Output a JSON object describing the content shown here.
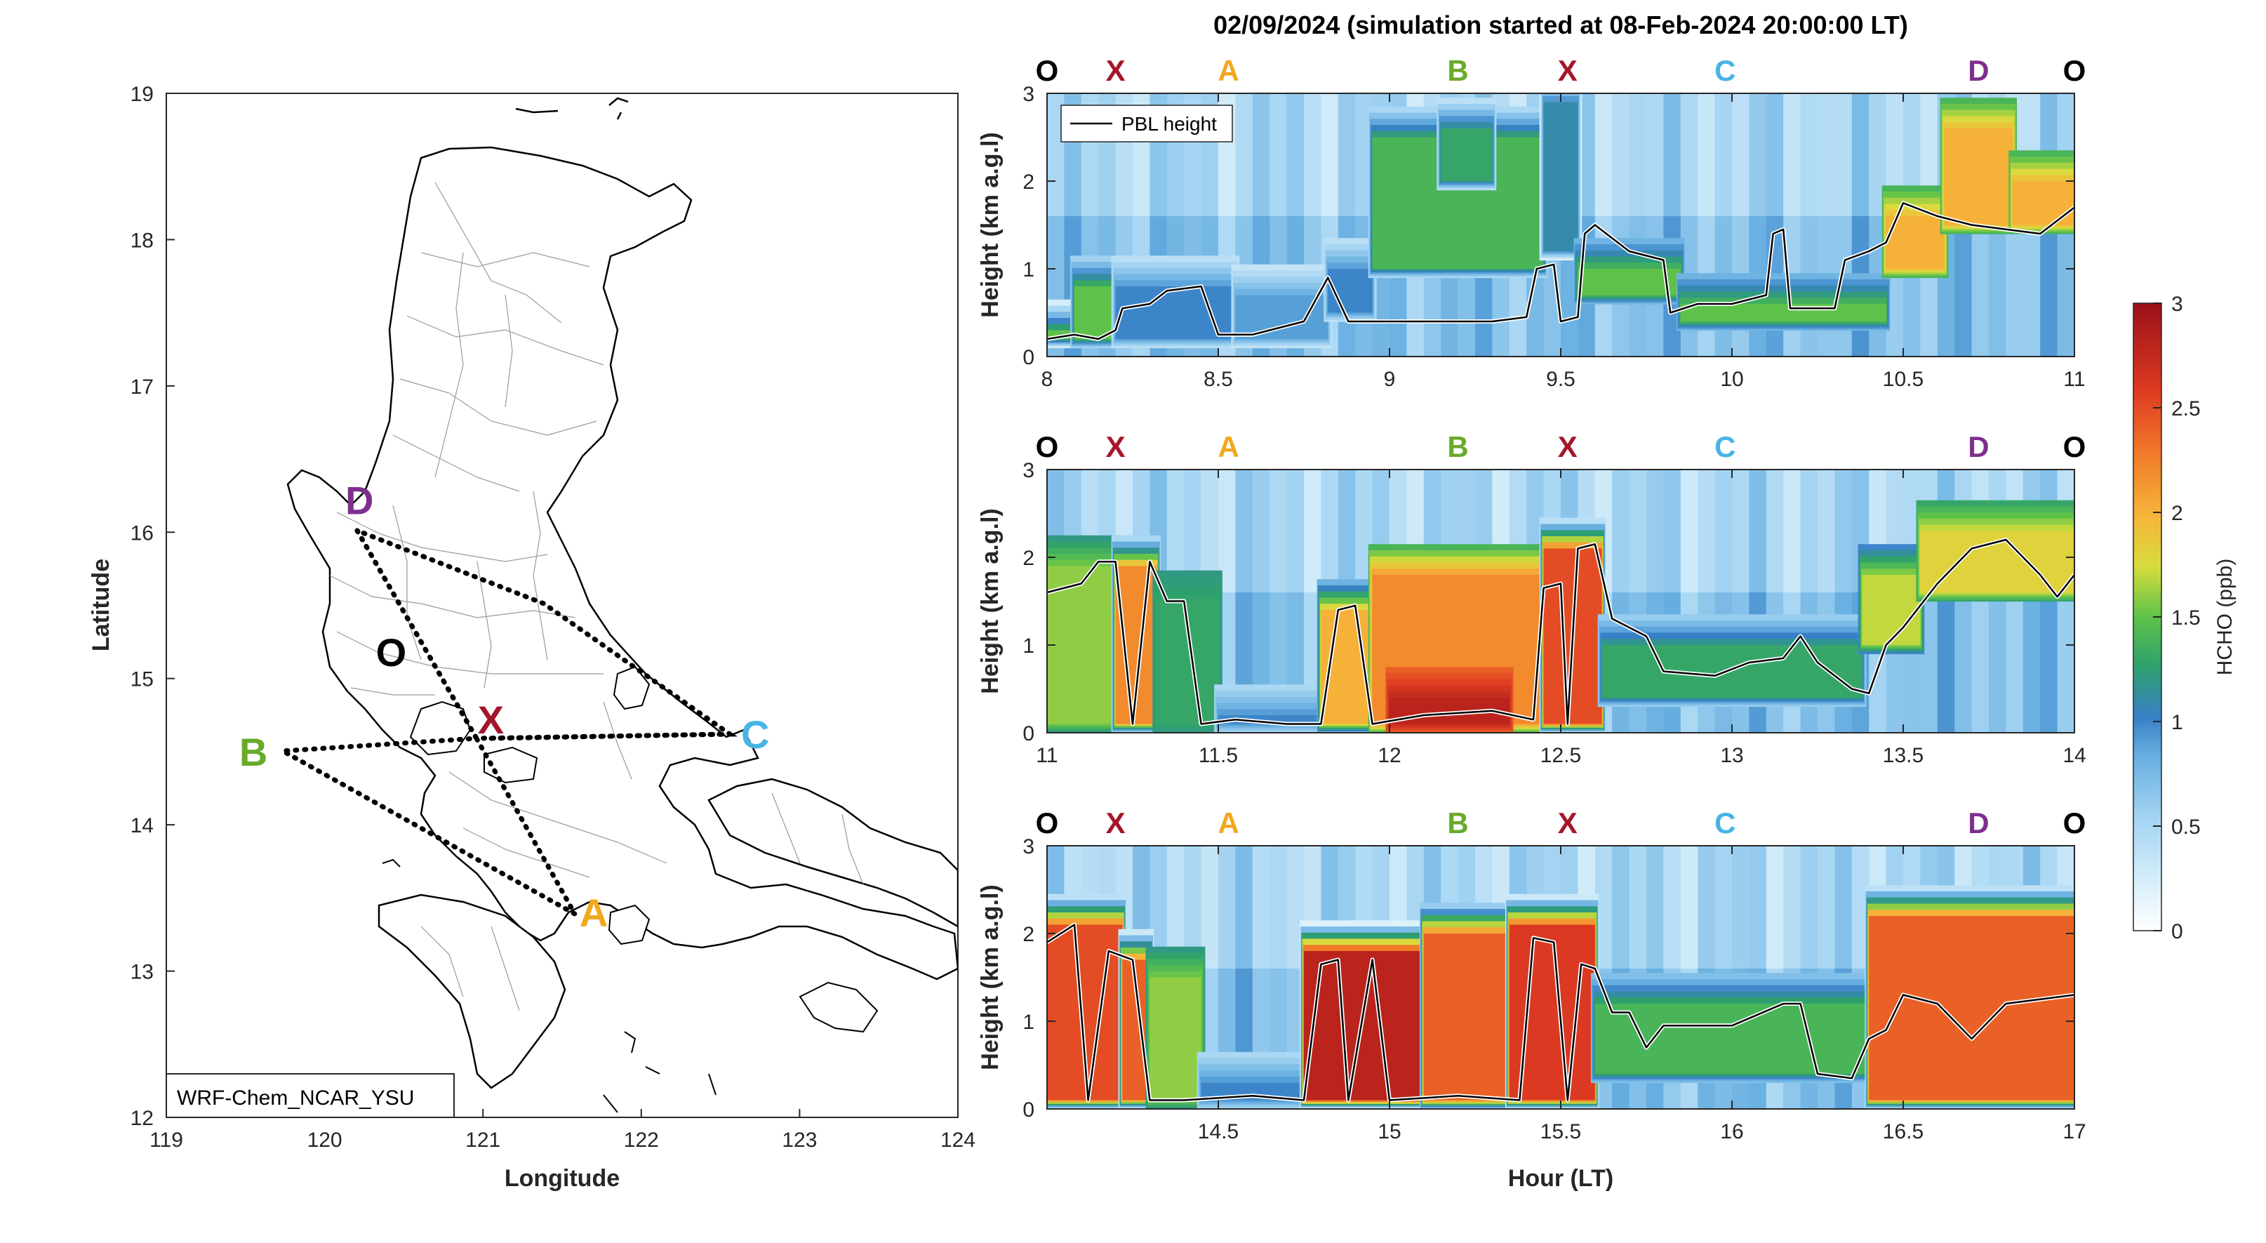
{
  "colors": {
    "O": "#000000",
    "X": "#a4162a",
    "A": "#f2a81d",
    "B": "#6aaa2b",
    "C": "#46b4e4",
    "D": "#7e2f8e",
    "pbl_line": "#000000"
  },
  "colorbar": {
    "label": "HCHO (ppb)",
    "ticks": [
      "0",
      "0.5",
      "1",
      "1.5",
      "2",
      "2.5",
      "3"
    ],
    "range": [
      0,
      3
    ]
  },
  "map": {
    "xlabel": "Longitude",
    "ylabel": "Latitude",
    "xticks": [
      "119",
      "120",
      "121",
      "122",
      "123",
      "124"
    ],
    "yticks": [
      "12",
      "13",
      "14",
      "15",
      "16",
      "17",
      "18",
      "19"
    ],
    "model_label": "WRF-Chem_NCAR_YSU",
    "points": [
      {
        "id": "D",
        "lon": 120.22,
        "lat": 16.22
      },
      {
        "id": "O",
        "lon": 120.42,
        "lat": 15.18
      },
      {
        "id": "X",
        "lon": 121.05,
        "lat": 14.72
      },
      {
        "id": "B",
        "lon": 119.55,
        "lat": 14.5
      },
      {
        "id": "C",
        "lon": 122.72,
        "lat": 14.62
      },
      {
        "id": "A",
        "lon": 121.7,
        "lat": 13.4
      }
    ],
    "path_nodes": {
      "D": [
        120.28,
        16.02
      ],
      "X": [
        121.0,
        14.57
      ],
      "B": [
        119.75,
        14.5
      ],
      "C": [
        122.55,
        14.62
      ],
      "A": [
        121.6,
        13.42
      ]
    }
  },
  "chart_data": [
    {
      "type": "heatmap",
      "title": "02/09/2024 (simulation started at 08-Feb-2024 20:00:00 LT)",
      "xlim": [
        8,
        11
      ],
      "ylim": [
        0,
        3
      ],
      "xticks": [
        "8",
        "8.5",
        "9",
        "9.5",
        "10",
        "10.5",
        "11"
      ],
      "yticks": [
        "0",
        "1",
        "2",
        "3"
      ],
      "ylabel": "Height (km a.g.l)",
      "xlabel": "",
      "legend": "PBL height",
      "waypoints": [
        {
          "id": "O",
          "x": 8.0
        },
        {
          "id": "X",
          "x": 8.2
        },
        {
          "id": "A",
          "x": 8.53
        },
        {
          "id": "B",
          "x": 9.2
        },
        {
          "id": "X",
          "x": 9.52
        },
        {
          "id": "C",
          "x": 9.98
        },
        {
          "id": "D",
          "x": 10.72
        },
        {
          "id": "O",
          "x": 11.0
        }
      ],
      "pbl": [
        [
          8.0,
          0.2
        ],
        [
          8.08,
          0.25
        ],
        [
          8.15,
          0.2
        ],
        [
          8.2,
          0.3
        ],
        [
          8.22,
          0.55
        ],
        [
          8.3,
          0.6
        ],
        [
          8.35,
          0.75
        ],
        [
          8.45,
          0.8
        ],
        [
          8.5,
          0.25
        ],
        [
          8.6,
          0.25
        ],
        [
          8.65,
          0.3
        ],
        [
          8.75,
          0.4
        ],
        [
          8.82,
          0.9
        ],
        [
          8.88,
          0.4
        ],
        [
          8.95,
          0.4
        ],
        [
          9.1,
          0.4
        ],
        [
          9.3,
          0.4
        ],
        [
          9.4,
          0.45
        ],
        [
          9.43,
          1.0
        ],
        [
          9.48,
          1.05
        ],
        [
          9.5,
          0.4
        ],
        [
          9.55,
          0.45
        ],
        [
          9.57,
          1.4
        ],
        [
          9.6,
          1.5
        ],
        [
          9.7,
          1.2
        ],
        [
          9.8,
          1.1
        ],
        [
          9.82,
          0.5
        ],
        [
          9.9,
          0.6
        ],
        [
          10.0,
          0.6
        ],
        [
          10.1,
          0.7
        ],
        [
          10.12,
          1.4
        ],
        [
          10.15,
          1.45
        ],
        [
          10.17,
          0.55
        ],
        [
          10.3,
          0.55
        ],
        [
          10.33,
          1.1
        ],
        [
          10.4,
          1.2
        ],
        [
          10.45,
          1.3
        ],
        [
          10.5,
          1.75
        ],
        [
          10.6,
          1.6
        ],
        [
          10.7,
          1.5
        ],
        [
          10.8,
          1.45
        ],
        [
          10.9,
          1.4
        ],
        [
          11.0,
          1.7
        ]
      ],
      "bands": [
        [
          8.0,
          8.08,
          0.2,
          0.3,
          0.25,
          1.5
        ],
        [
          8.08,
          8.2,
          0.2,
          0.8,
          0.55,
          1.5
        ],
        [
          8.2,
          8.55,
          0.2,
          0.8,
          0.4,
          1.0
        ],
        [
          8.55,
          8.82,
          0.2,
          0.7,
          0.35,
          0.9
        ],
        [
          8.82,
          8.95,
          0.5,
          1.0,
          0.4,
          1.0
        ],
        [
          8.95,
          9.45,
          1.0,
          2.5,
          0.5,
          1.4
        ],
        [
          9.15,
          9.3,
          2.0,
          2.6,
          0.4,
          1.3
        ],
        [
          9.45,
          9.55,
          1.2,
          2.9,
          0.2,
          1.1
        ],
        [
          9.55,
          9.85,
          0.7,
          1.0,
          0.8,
          1.5
        ],
        [
          9.85,
          10.45,
          0.4,
          0.6,
          0.8,
          1.5
        ],
        [
          10.45,
          10.62,
          1.0,
          1.6,
          1.4,
          2.0
        ],
        [
          10.62,
          10.82,
          1.5,
          2.6,
          1.4,
          2.0
        ],
        [
          10.82,
          11.0,
          1.5,
          2.0,
          1.4,
          2.0
        ]
      ]
    },
    {
      "type": "heatmap",
      "xlim": [
        11,
        14
      ],
      "ylim": [
        0,
        3
      ],
      "xticks": [
        "11",
        "11.5",
        "12",
        "12.5",
        "13",
        "13.5",
        "14"
      ],
      "yticks": [
        "0",
        "1",
        "2",
        "3"
      ],
      "ylabel": "Height (km a.g.l)",
      "xlabel": "",
      "waypoints": [
        {
          "id": "O",
          "x": 11.0
        },
        {
          "id": "X",
          "x": 11.2
        },
        {
          "id": "A",
          "x": 11.53
        },
        {
          "id": "B",
          "x": 12.2
        },
        {
          "id": "X",
          "x": 12.52
        },
        {
          "id": "C",
          "x": 12.98
        },
        {
          "id": "D",
          "x": 13.72
        },
        {
          "id": "O",
          "x": 14.0
        }
      ],
      "pbl": [
        [
          11.0,
          1.6
        ],
        [
          11.1,
          1.7
        ],
        [
          11.15,
          1.95
        ],
        [
          11.2,
          1.95
        ],
        [
          11.25,
          0.1
        ],
        [
          11.3,
          1.95
        ],
        [
          11.35,
          1.5
        ],
        [
          11.4,
          1.5
        ],
        [
          11.45,
          0.1
        ],
        [
          11.55,
          0.15
        ],
        [
          11.7,
          0.1
        ],
        [
          11.8,
          0.1
        ],
        [
          11.85,
          1.4
        ],
        [
          11.9,
          1.45
        ],
        [
          11.95,
          0.1
        ],
        [
          12.1,
          0.2
        ],
        [
          12.3,
          0.25
        ],
        [
          12.42,
          0.15
        ],
        [
          12.45,
          1.65
        ],
        [
          12.5,
          1.7
        ],
        [
          12.52,
          0.1
        ],
        [
          12.55,
          2.1
        ],
        [
          12.6,
          2.15
        ],
        [
          12.65,
          1.3
        ],
        [
          12.75,
          1.1
        ],
        [
          12.8,
          0.7
        ],
        [
          12.95,
          0.65
        ],
        [
          13.05,
          0.8
        ],
        [
          13.15,
          0.85
        ],
        [
          13.2,
          1.1
        ],
        [
          13.25,
          0.8
        ],
        [
          13.35,
          0.5
        ],
        [
          13.4,
          0.45
        ],
        [
          13.45,
          1.0
        ],
        [
          13.5,
          1.2
        ],
        [
          13.6,
          1.7
        ],
        [
          13.7,
          2.1
        ],
        [
          13.8,
          2.2
        ],
        [
          13.9,
          1.8
        ],
        [
          13.95,
          1.55
        ],
        [
          14.0,
          1.8
        ]
      ],
      "bands": [
        [
          11.0,
          11.2,
          0.1,
          1.9,
          1.2,
          1.6
        ],
        [
          11.2,
          11.32,
          0.1,
          1.9,
          0.5,
          2.2
        ],
        [
          11.32,
          11.5,
          0.1,
          1.5,
          1.2,
          1.3
        ],
        [
          11.5,
          11.8,
          0.1,
          0.2,
          0.5,
          1.0
        ],
        [
          11.8,
          11.95,
          0.1,
          1.4,
          0.8,
          2.0
        ],
        [
          11.95,
          12.45,
          0.1,
          1.8,
          1.4,
          2.2
        ],
        [
          12.0,
          12.35,
          0.1,
          0.4,
          2.4,
          2.8
        ],
        [
          12.45,
          12.62,
          0.1,
          2.1,
          0.4,
          2.5
        ],
        [
          12.62,
          13.38,
          0.4,
          1.0,
          0.6,
          1.3
        ],
        [
          13.38,
          13.55,
          1.0,
          1.8,
          1.0,
          1.7
        ],
        [
          13.55,
          14.0,
          1.6,
          2.3,
          1.3,
          1.8
        ]
      ]
    },
    {
      "type": "heatmap",
      "xlim": [
        14,
        17
      ],
      "ylim": [
        0,
        3
      ],
      "xticks": [
        "14.5",
        "15",
        "15.5",
        "16",
        "16.5",
        "17"
      ],
      "yticks": [
        "0",
        "1",
        "2",
        "3"
      ],
      "ylabel": "Height (km a.g.l)",
      "xlabel": "Hour (LT)",
      "waypoints": [
        {
          "id": "O",
          "x": 14.0
        },
        {
          "id": "X",
          "x": 14.2
        },
        {
          "id": "A",
          "x": 14.53
        },
        {
          "id": "B",
          "x": 15.2
        },
        {
          "id": "X",
          "x": 15.52
        },
        {
          "id": "C",
          "x": 15.98
        },
        {
          "id": "D",
          "x": 16.72
        },
        {
          "id": "O",
          "x": 17.0
        }
      ],
      "pbl": [
        [
          14.0,
          1.9
        ],
        [
          14.08,
          2.1
        ],
        [
          14.12,
          0.1
        ],
        [
          14.18,
          1.8
        ],
        [
          14.25,
          1.7
        ],
        [
          14.3,
          0.1
        ],
        [
          14.4,
          0.1
        ],
        [
          14.6,
          0.15
        ],
        [
          14.75,
          0.1
        ],
        [
          14.8,
          1.65
        ],
        [
          14.85,
          1.7
        ],
        [
          14.88,
          0.1
        ],
        [
          14.95,
          1.7
        ],
        [
          15.0,
          0.1
        ],
        [
          15.2,
          0.15
        ],
        [
          15.38,
          0.1
        ],
        [
          15.42,
          1.95
        ],
        [
          15.48,
          1.9
        ],
        [
          15.52,
          0.1
        ],
        [
          15.56,
          1.65
        ],
        [
          15.6,
          1.6
        ],
        [
          15.65,
          1.1
        ],
        [
          15.7,
          1.1
        ],
        [
          15.75,
          0.7
        ],
        [
          15.8,
          0.95
        ],
        [
          16.0,
          0.95
        ],
        [
          16.15,
          1.2
        ],
        [
          16.2,
          1.2
        ],
        [
          16.25,
          0.4
        ],
        [
          16.35,
          0.35
        ],
        [
          16.4,
          0.8
        ],
        [
          16.45,
          0.9
        ],
        [
          16.5,
          1.3
        ],
        [
          16.6,
          1.2
        ],
        [
          16.7,
          0.8
        ],
        [
          16.8,
          1.2
        ],
        [
          16.9,
          1.25
        ],
        [
          17.0,
          1.3
        ]
      ],
      "bands": [
        [
          14.0,
          14.22,
          0.1,
          2.1,
          0.4,
          2.5
        ],
        [
          14.22,
          14.3,
          0.1,
          1.7,
          0.3,
          2.4
        ],
        [
          14.3,
          14.45,
          0.1,
          1.5,
          1.2,
          1.6
        ],
        [
          14.45,
          14.75,
          0.1,
          0.3,
          0.5,
          1.0
        ],
        [
          14.75,
          15.1,
          0.1,
          1.8,
          0.2,
          2.8
        ],
        [
          15.1,
          15.35,
          0.1,
          2.0,
          0.6,
          2.4
        ],
        [
          15.35,
          15.6,
          0.1,
          2.1,
          0.3,
          2.6
        ],
        [
          15.6,
          16.4,
          0.4,
          1.2,
          0.7,
          1.4
        ],
        [
          16.4,
          17.0,
          0.1,
          2.2,
          0.4,
          2.4
        ]
      ]
    }
  ]
}
